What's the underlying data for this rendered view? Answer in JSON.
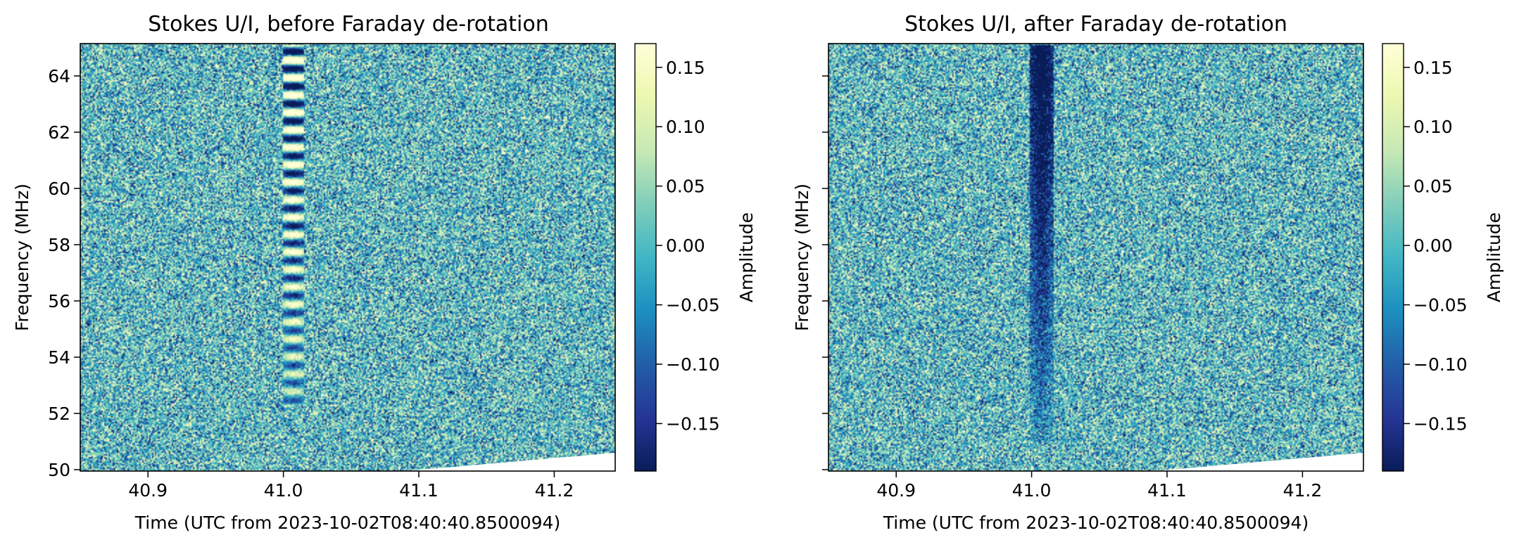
{
  "chart_data": [
    {
      "type": "heatmap",
      "title": "Stokes U/I, before Faraday de-rotation",
      "xlabel": "Time (UTC from 2023-10-02T08:40:40.8500094)",
      "ylabel": "Frequency (MHz)",
      "xlim": [
        40.85,
        41.245
      ],
      "ylim": [
        49.95,
        65.15
      ],
      "xticks": [
        40.9,
        41.0,
        41.1,
        41.2
      ],
      "xtick_labels": [
        "40.9",
        "41.0",
        "41.1",
        "41.2"
      ],
      "yticks": [
        50,
        52,
        54,
        56,
        58,
        60,
        62,
        64
      ],
      "ytick_labels": [
        "50",
        "52",
        "54",
        "56",
        "58",
        "60",
        "62",
        "64"
      ],
      "show_ytick_labels": true,
      "show_ylabel": true,
      "colormap": "YlGnBu_r",
      "colorbar": {
        "label": "Amplitude",
        "vmin": -0.19,
        "vmax": 0.17,
        "ticks": [
          -0.15,
          -0.1,
          -0.05,
          0.0,
          0.05,
          0.1,
          0.15
        ],
        "tick_labels": [
          "−0.15",
          "−0.10",
          "−0.05",
          "0.00",
          "0.05",
          "0.10",
          "0.15"
        ]
      },
      "signal": {
        "time_start": 41.0,
        "time_end": 41.015,
        "freq_min": 52.3,
        "freq_max": 65.1,
        "pattern": "alternating positive/negative Faraday rotation stripes"
      },
      "no_data_wedge": {
        "time_start": 41.09,
        "time_end": 41.245,
        "freq_at_end": 50.6
      }
    },
    {
      "type": "heatmap",
      "title": "Stokes U/I, after Faraday de-rotation",
      "xlabel": "Time (UTC from 2023-10-02T08:40:40.8500094)",
      "ylabel": "Frequency (MHz)",
      "xlim": [
        40.85,
        41.245
      ],
      "ylim": [
        49.95,
        65.15
      ],
      "xticks": [
        40.9,
        41.0,
        41.1,
        41.2
      ],
      "xtick_labels": [
        "40.9",
        "41.0",
        "41.1",
        "41.2"
      ],
      "yticks": [
        50,
        52,
        54,
        56,
        58,
        60,
        62,
        64
      ],
      "ytick_labels": [],
      "show_ytick_labels": false,
      "show_ylabel": true,
      "colormap": "YlGnBu_r",
      "colorbar": {
        "label": "Amplitude",
        "vmin": -0.19,
        "vmax": 0.17,
        "ticks": [
          -0.15,
          -0.1,
          -0.05,
          0.0,
          0.05,
          0.1,
          0.15
        ],
        "tick_labels": [
          "−0.15",
          "−0.10",
          "−0.05",
          "0.00",
          "0.05",
          "0.10",
          "0.15"
        ]
      },
      "signal": {
        "time_start": 40.999,
        "time_end": 41.016,
        "freq_min": 51.0,
        "freq_max": 65.1,
        "pattern": "uniformly negative after de-rotation"
      },
      "no_data_wedge": {
        "time_start": 41.09,
        "time_end": 41.245,
        "freq_at_end": 50.6
      }
    }
  ]
}
